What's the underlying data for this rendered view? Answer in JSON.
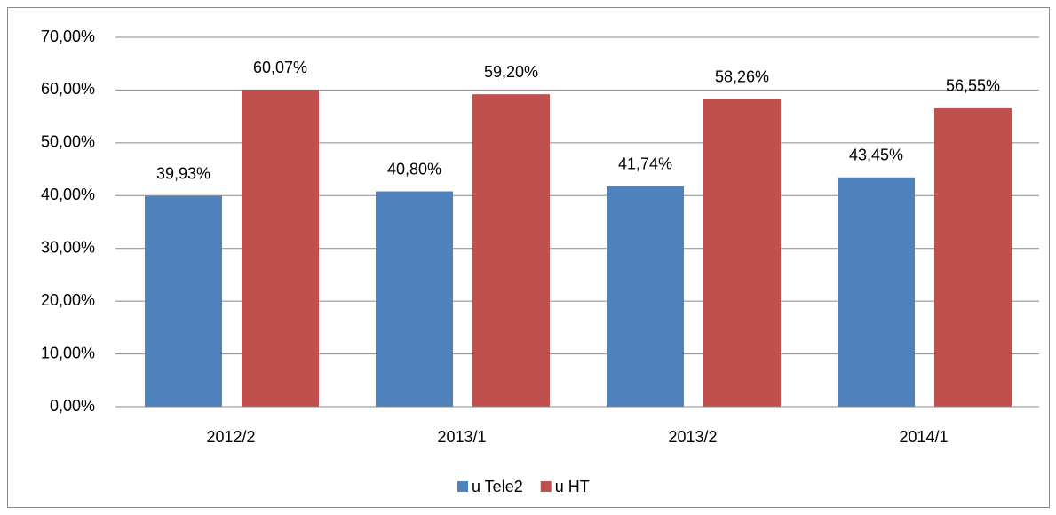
{
  "chart_data": {
    "type": "bar",
    "categories": [
      "2012/2",
      "2013/1",
      "2013/2",
      "2014/1"
    ],
    "series": [
      {
        "name": "u Tele2",
        "color": "#4f81bd",
        "values": [
          39.93,
          40.8,
          41.74,
          43.45
        ],
        "value_labels": [
          "39,93%",
          "40,80%",
          "41,74%",
          "43,45%"
        ]
      },
      {
        "name": "u HT",
        "color": "#c0504d",
        "values": [
          60.07,
          59.2,
          58.26,
          56.55
        ],
        "value_labels": [
          "60,07%",
          "59,20%",
          "58,26%",
          "56,55%"
        ]
      }
    ],
    "ylim": [
      0,
      70
    ],
    "yticks": [
      {
        "value": 0,
        "label": "0,00%"
      },
      {
        "value": 10,
        "label": "10,00%"
      },
      {
        "value": 20,
        "label": "20,00%"
      },
      {
        "value": 30,
        "label": "30,00%"
      },
      {
        "value": 40,
        "label": "40,00%"
      },
      {
        "value": 50,
        "label": "50,00%"
      },
      {
        "value": 60,
        "label": "60,00%"
      },
      {
        "value": 70,
        "label": "70,00%"
      }
    ],
    "grid": true,
    "legend": "bottom"
  }
}
